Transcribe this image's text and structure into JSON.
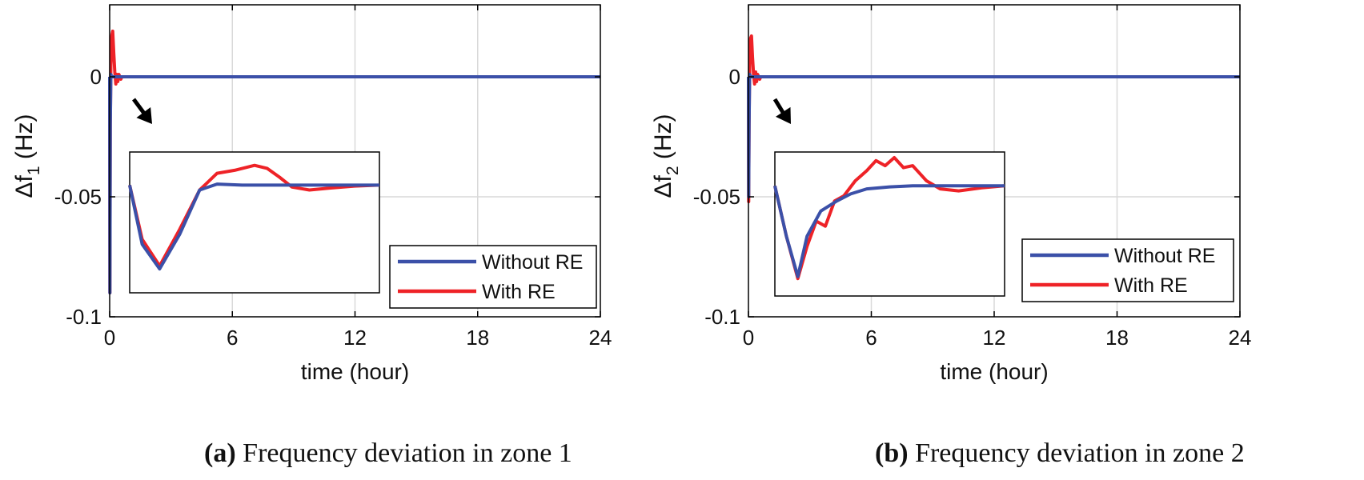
{
  "colors": {
    "without_re": "#3b50a8",
    "with_re": "#ee2227",
    "axis": "#000000",
    "grid": "#d9d9d9"
  },
  "chart_data": [
    {
      "type": "line",
      "panel_label": "(a)",
      "caption": "Frequency deviation in zone 1",
      "xlabel": "time (hour)",
      "ylabel_main": "Δf",
      "ylabel_sub": "1",
      "ylabel_unit": " (Hz)",
      "xlim": [
        0,
        24
      ],
      "ylim": [
        -0.1,
        0.03
      ],
      "xticks": [
        0,
        6,
        12,
        18,
        24
      ],
      "xtick_labels": [
        "0",
        "6",
        "12",
        "18",
        "24"
      ],
      "yticks": [
        0,
        -0.05,
        -0.1
      ],
      "ytick_labels": [
        "0",
        "-0.05",
        "-0.1"
      ],
      "grid": true,
      "legend": [
        "Without RE",
        "With RE"
      ],
      "legend_position": "lower-right",
      "series": [
        {
          "name": "Without RE",
          "x": [
            0,
            0.01,
            0.03,
            0.06,
            0.1,
            0.15,
            0.22,
            0.35,
            24
          ],
          "y": [
            0,
            -0.09,
            -0.02,
            0.001,
            0,
            0,
            0,
            0,
            0
          ]
        },
        {
          "name": "With RE",
          "x": [
            0,
            0.01,
            0.03,
            0.06,
            0.1,
            0.15,
            0.2,
            0.25,
            0.3,
            0.35,
            0.4,
            0.45,
            0.5,
            0.55,
            0.6,
            24
          ],
          "y": [
            0,
            -0.09,
            -0.02,
            0.005,
            0.017,
            0.019,
            0.01,
            0.002,
            -0.003,
            0.001,
            -0.002,
            0.001,
            0,
            -0.001,
            0,
            0
          ]
        }
      ],
      "inset": {
        "description_arrow": true,
        "series": [
          {
            "name": "Without RE",
            "x": [
              0,
              0.05,
              0.12,
              0.2,
              0.28,
              0.35,
              0.45,
              0.6,
              0.8,
              1.0
            ],
            "y": [
              0,
              -0.6,
              -0.85,
              -0.5,
              -0.05,
              0.01,
              0.0,
              0.0,
              0.0,
              0.0
            ]
          },
          {
            "name": "With RE",
            "x": [
              0,
              0.05,
              0.12,
              0.2,
              0.28,
              0.35,
              0.42,
              0.5,
              0.55,
              0.6,
              0.65,
              0.72,
              0.8,
              0.9,
              1.0
            ],
            "y": [
              0,
              -0.55,
              -0.82,
              -0.45,
              -0.05,
              0.12,
              0.15,
              0.2,
              0.17,
              0.08,
              -0.02,
              -0.05,
              -0.03,
              -0.01,
              0.0
            ]
          }
        ]
      }
    },
    {
      "type": "line",
      "panel_label": "(b)",
      "caption": "Frequency deviation in zone 2",
      "xlabel": "time (hour)",
      "ylabel_main": "Δf",
      "ylabel_sub": "2",
      "ylabel_unit": " (Hz)",
      "xlim": [
        0,
        24
      ],
      "ylim": [
        -0.1,
        0.03
      ],
      "xticks": [
        0,
        6,
        12,
        18,
        24
      ],
      "xtick_labels": [
        "0",
        "6",
        "12",
        "18",
        "24"
      ],
      "yticks": [
        0,
        -0.05,
        -0.1
      ],
      "ytick_labels": [
        "0",
        "-0.05",
        "-0.1"
      ],
      "grid": true,
      "legend": [
        "Without RE",
        "With RE"
      ],
      "legend_position": "lower-right",
      "series": [
        {
          "name": "Without RE",
          "x": [
            0,
            0.01,
            0.03,
            0.06,
            0.1,
            0.15,
            0.25,
            0.4,
            24
          ],
          "y": [
            0,
            -0.05,
            -0.02,
            0.001,
            0,
            0,
            0,
            0,
            0
          ]
        },
        {
          "name": "With RE",
          "x": [
            0,
            0.01,
            0.03,
            0.06,
            0.1,
            0.15,
            0.2,
            0.25,
            0.3,
            0.35,
            0.4,
            0.45,
            0.5,
            0.55,
            0.6,
            24
          ],
          "y": [
            0,
            -0.052,
            -0.02,
            0.005,
            0.016,
            0.017,
            0.008,
            0.001,
            -0.003,
            0.002,
            -0.002,
            0.001,
            0,
            -0.001,
            0,
            0
          ]
        }
      ],
      "inset": {
        "description_arrow": true,
        "series": [
          {
            "name": "Without RE",
            "x": [
              0,
              0.05,
              0.1,
              0.14,
              0.2,
              0.27,
              0.33,
              0.4,
              0.5,
              0.6,
              0.8,
              1.0
            ],
            "y": [
              0,
              -0.5,
              -0.9,
              -0.5,
              -0.25,
              -0.15,
              -0.08,
              -0.03,
              -0.01,
              0.0,
              0.0,
              0.0
            ]
          },
          {
            "name": "With RE",
            "x": [
              0,
              0.05,
              0.1,
              0.14,
              0.18,
              0.22,
              0.26,
              0.3,
              0.35,
              0.4,
              0.44,
              0.48,
              0.52,
              0.56,
              0.6,
              0.66,
              0.72,
              0.8,
              0.9,
              1.0
            ],
            "y": [
              0,
              -0.5,
              -0.92,
              -0.6,
              -0.35,
              -0.4,
              -0.15,
              -0.1,
              0.05,
              0.15,
              0.25,
              0.2,
              0.28,
              0.18,
              0.2,
              0.05,
              -0.03,
              -0.05,
              -0.02,
              0.0
            ]
          }
        ]
      }
    }
  ]
}
